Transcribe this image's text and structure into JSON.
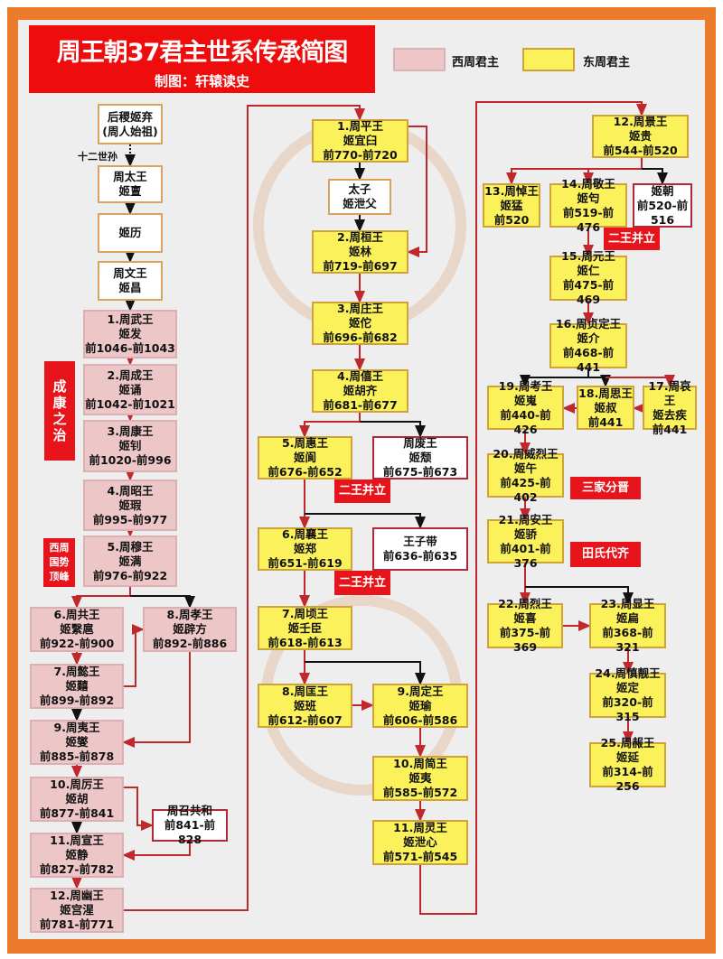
{
  "header": {
    "title": "周王朝37君主世系传承简图",
    "subtitle": "制图：轩辕读史"
  },
  "legend": [
    {
      "label": "西周君主",
      "color": "#edc6c8"
    },
    {
      "label": "东周君主",
      "color": "#fbf15a"
    }
  ],
  "colors": {
    "frame": "#ec7b2c",
    "tag": "#e8141b",
    "line_main": "#c0282e",
    "line_branch": "#111111"
  },
  "ancestor_note": "十二世孙",
  "tags": {
    "chengkang": "成康之治",
    "peak": "西周国势顶峰",
    "dual1": "二王并立",
    "dual2": "二王并立",
    "dual3": "二王并立",
    "sanjia": "三家分晋",
    "tianshi": "田氏代齐"
  },
  "nodes": {
    "houji": [
      "后稷姬弃",
      "(周人始祖)"
    ],
    "taiwang": [
      "周太王",
      "姬亶"
    ],
    "jili": [
      "姬历"
    ],
    "wenwang": [
      "周文王",
      "姬昌"
    ],
    "w1": [
      "1.周武王",
      "姬发",
      "前1046-前1043"
    ],
    "w2": [
      "2.周成王",
      "姬诵",
      "前1042-前1021"
    ],
    "w3": [
      "3.周康王",
      "姬钊",
      "前1020-前996"
    ],
    "w4": [
      "4.周昭王",
      "姬瑕",
      "前995-前977"
    ],
    "w5": [
      "5.周穆王",
      "姬满",
      "前976-前922"
    ],
    "w6": [
      "6.周共王",
      "姬繄扈",
      "前922-前900"
    ],
    "w7": [
      "7.周懿王",
      "姬囏",
      "前899-前892"
    ],
    "w8": [
      "8.周孝王",
      "姬辟方",
      "前892-前886"
    ],
    "w9": [
      "9.周夷王",
      "姬燮",
      "前885-前878"
    ],
    "w10": [
      "10.周厉王",
      "姬胡",
      "前877-前841"
    ],
    "gonghe": [
      "周召共和",
      "前841-前828"
    ],
    "w11": [
      "11.周宣王",
      "姬静",
      "前827-前782"
    ],
    "w12": [
      "12.周幽王",
      "姬宫湦",
      "前781-前771"
    ],
    "e1": [
      "1.周平王",
      "姬宜臼",
      "前770-前720"
    ],
    "taizi": [
      "太子",
      "姬泄父"
    ],
    "e2": [
      "2.周桓王",
      "姬林",
      "前719-前697"
    ],
    "e3": [
      "3.周庄王",
      "姬佗",
      "前696-前682"
    ],
    "e4": [
      "4.周僖王",
      "姬胡齐",
      "前681-前677"
    ],
    "e5": [
      "5.周惠王",
      "姬阆",
      "前676-前652"
    ],
    "feiwang": [
      "周废王",
      "姬颓",
      "前675-前673"
    ],
    "e6": [
      "6.周襄王",
      "姬郑",
      "前651-前619"
    ],
    "zidai": [
      "王子带",
      "前636-前635"
    ],
    "e7": [
      "7.周顷王",
      "姬壬臣",
      "前618-前613"
    ],
    "e8": [
      "8.周匡王",
      "姬班",
      "前612-前607"
    ],
    "e9": [
      "9.周定王",
      "姬瑜",
      "前606-前586"
    ],
    "e10": [
      "10.周简王",
      "姬夷",
      "前585-前572"
    ],
    "e11": [
      "11.周灵王",
      "姬泄心",
      "前571-前545"
    ],
    "e12": [
      "12.周景王",
      "姬贵",
      "前544-前520"
    ],
    "e13": [
      "13.周悼王",
      "姬猛",
      "前520"
    ],
    "e14": [
      "14.周敬王",
      "姬匄",
      "前519-前476"
    ],
    "jichao": [
      "姬朝",
      "前520-前",
      "516"
    ],
    "e15": [
      "15.周元王",
      "姬仁",
      "前475-前469"
    ],
    "e16": [
      "16.周贞定王",
      "姬介",
      "前468-前441"
    ],
    "e17": [
      "17.周哀王",
      "姬去疾",
      "前441"
    ],
    "e18": [
      "18.周思王",
      "姬叔",
      "前441"
    ],
    "e19": [
      "19.周考王",
      "姬嵬",
      "前440-前426"
    ],
    "e20": [
      "20.周威烈王",
      "姬午",
      "前425-前402"
    ],
    "e21": [
      "21.周安王",
      "姬骄",
      "前401-前376"
    ],
    "e22": [
      "22.周烈王",
      "姬喜",
      "前375-前369"
    ],
    "e23": [
      "23.周显王",
      "姬扁",
      "前368-前321"
    ],
    "e24": [
      "24.周慎靓王",
      "姬定",
      "前320-前315"
    ],
    "e25": [
      "25.周赧王",
      "姬延",
      "前314-前256"
    ]
  }
}
